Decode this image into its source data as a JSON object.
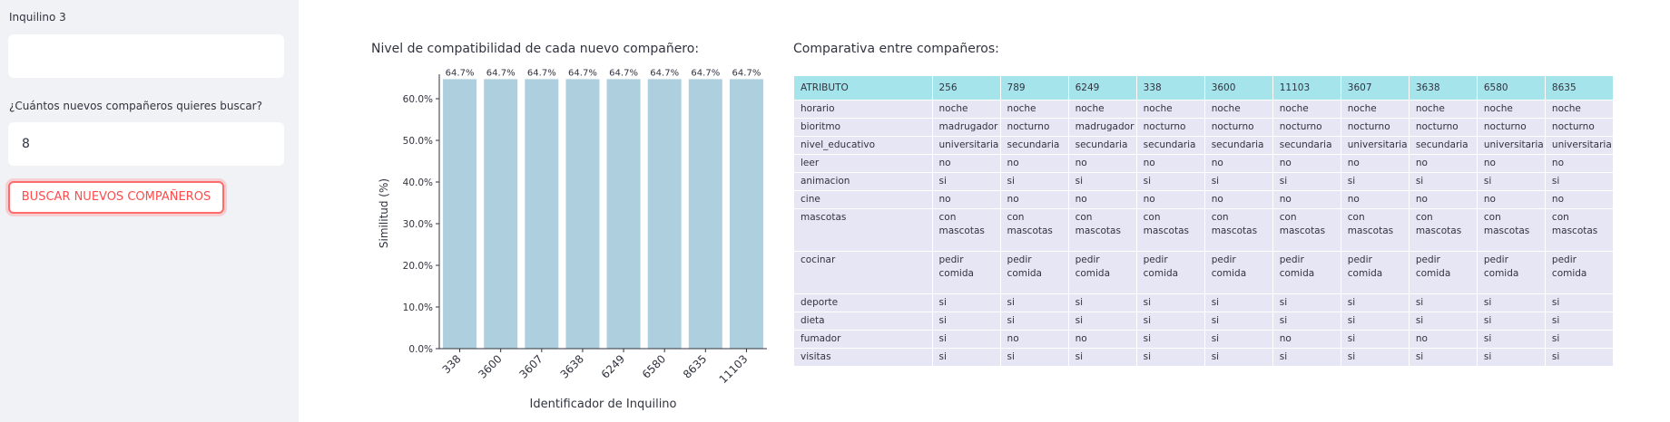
{
  "sidebar": {
    "tenant_label": "Inquilino 3",
    "tenant_value": "",
    "count_label": "¿Cuántos nuevos compañeros quieres buscar?",
    "count_value": "8",
    "search_button": "BUSCAR NUEVOS COMPAÑEROS"
  },
  "chart_section": {
    "title": "Nivel de compatibilidad de cada nuevo compañero:"
  },
  "chart_data": {
    "type": "bar",
    "categories": [
      "338",
      "3600",
      "3607",
      "3638",
      "6249",
      "6580",
      "8635",
      "11103"
    ],
    "values": [
      64.7,
      64.7,
      64.7,
      64.7,
      64.7,
      64.7,
      64.7,
      64.7
    ],
    "value_labels": [
      "64.7%",
      "64.7%",
      "64.7%",
      "64.7%",
      "64.7%",
      "64.7%",
      "64.7%",
      "64.7%"
    ],
    "xlabel": "Identificador de Inquilino",
    "ylabel": "Similitud (%)",
    "ylim": [
      0,
      65
    ],
    "yticks": [
      0,
      10,
      20,
      30,
      40,
      50,
      60
    ],
    "ytick_labels": [
      "0.0%",
      "10.0%",
      "20.0%",
      "30.0%",
      "40.0%",
      "50.0%",
      "60.0%"
    ],
    "grid": false,
    "colors": {
      "bar": "#aecfdd",
      "axis": "#31333f"
    }
  },
  "table_section": {
    "title": "Comparativa entre compañeros:",
    "header": [
      "ATRIBUTO",
      "256",
      "789",
      "6249",
      "338",
      "3600",
      "11103",
      "3607",
      "3638",
      "6580",
      "8635"
    ],
    "rows": [
      {
        "attr": "horario",
        "values": [
          "noche",
          "noche",
          "noche",
          "noche",
          "noche",
          "noche",
          "noche",
          "noche",
          "noche",
          "noche"
        ]
      },
      {
        "attr": "bioritmo",
        "values": [
          "madrugador",
          "nocturno",
          "madrugador",
          "nocturno",
          "nocturno",
          "nocturno",
          "nocturno",
          "nocturno",
          "nocturno",
          "nocturno"
        ]
      },
      {
        "attr": "nivel_educativo",
        "values": [
          "universitaria",
          "secundaria",
          "secundaria",
          "secundaria",
          "secundaria",
          "secundaria",
          "universitaria",
          "secundaria",
          "universitaria",
          "universitaria"
        ]
      },
      {
        "attr": "leer",
        "values": [
          "no",
          "no",
          "no",
          "no",
          "no",
          "no",
          "no",
          "no",
          "no",
          "no"
        ]
      },
      {
        "attr": "animacion",
        "values": [
          "si",
          "si",
          "si",
          "si",
          "si",
          "si",
          "si",
          "si",
          "si",
          "si"
        ]
      },
      {
        "attr": "cine",
        "values": [
          "no",
          "no",
          "no",
          "no",
          "no",
          "no",
          "no",
          "no",
          "no",
          "no"
        ]
      },
      {
        "attr": "mascotas",
        "tall": true,
        "values": [
          "con mascotas",
          "con mascotas",
          "con mascotas",
          "con mascotas",
          "con mascotas",
          "con mascotas",
          "con mascotas",
          "con mascotas",
          "con mascotas",
          "con mascotas"
        ]
      },
      {
        "attr": "cocinar",
        "tall": true,
        "values": [
          "pedir comida",
          "pedir comida",
          "pedir comida",
          "pedir comida",
          "pedir comida",
          "pedir comida",
          "pedir comida",
          "pedir comida",
          "pedir comida",
          "pedir comida"
        ]
      },
      {
        "attr": "deporte",
        "values": [
          "si",
          "si",
          "si",
          "si",
          "si",
          "si",
          "si",
          "si",
          "si",
          "si"
        ]
      },
      {
        "attr": "dieta",
        "values": [
          "si",
          "si",
          "si",
          "si",
          "si",
          "si",
          "si",
          "si",
          "si",
          "si"
        ]
      },
      {
        "attr": "fumador",
        "values": [
          "si",
          "no",
          "no",
          "si",
          "si",
          "no",
          "si",
          "no",
          "si",
          "si"
        ]
      },
      {
        "attr": "visitas",
        "values": [
          "si",
          "si",
          "si",
          "si",
          "si",
          "si",
          "si",
          "si",
          "si",
          "si"
        ]
      }
    ]
  }
}
